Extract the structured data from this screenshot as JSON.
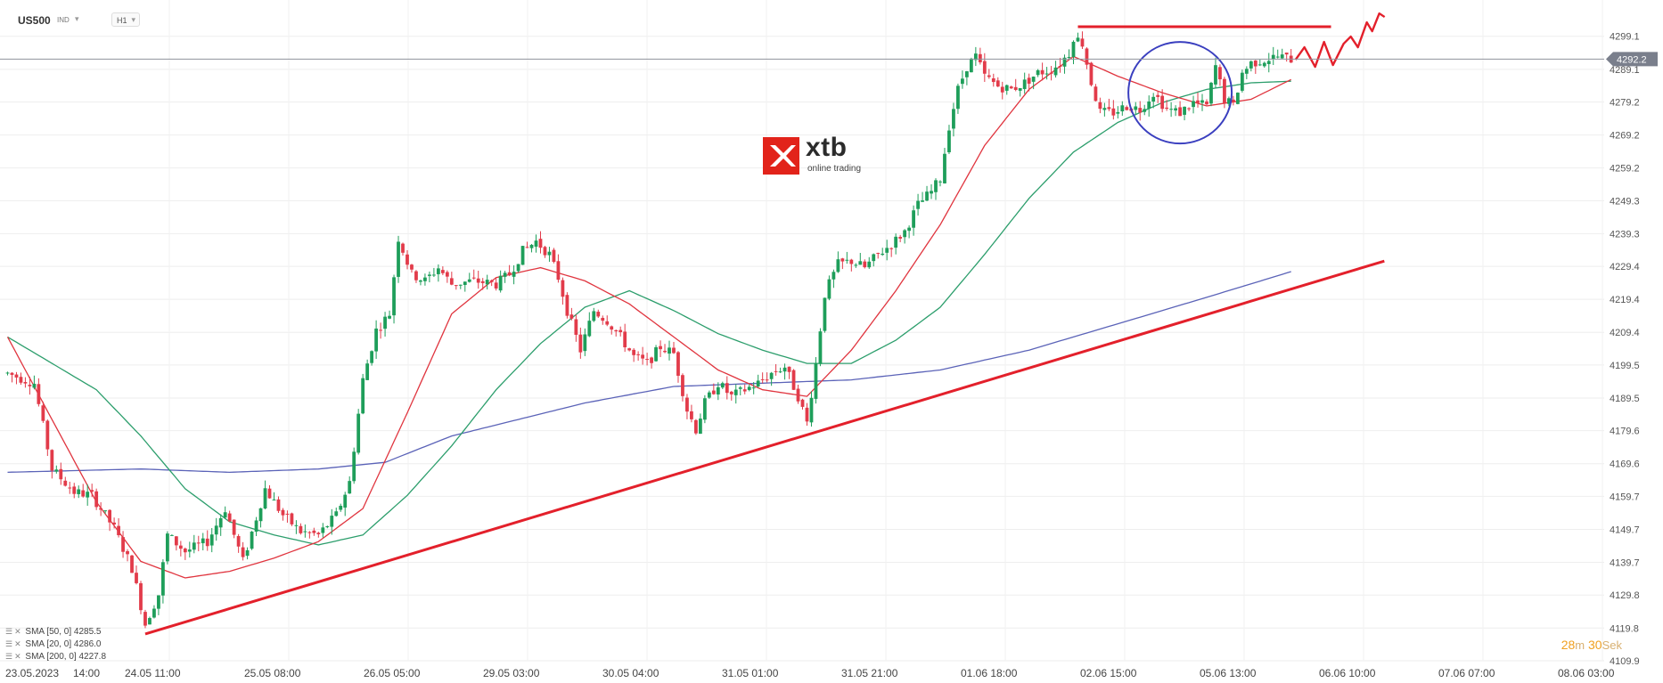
{
  "header": {
    "symbol": "US500",
    "badge": "IND",
    "timeframe": "H1"
  },
  "logo": {
    "word": "xtb",
    "sub": "online trading"
  },
  "legend": [
    {
      "label": "SMA [50, 0] 4285.5"
    },
    {
      "label": "SMA [20, 0] 4286.0"
    },
    {
      "label": "SMA [200, 0] 4227.8"
    }
  ],
  "timer": {
    "minutes": "28",
    "m": "m",
    "seconds": "30",
    "s": "Sek"
  },
  "colors": {
    "up": "#1e9e5a",
    "down": "#e23b4a",
    "sma20": "#e0353f",
    "sma50": "#2c9e6c",
    "sma200": "#5b63b8",
    "trend": "#e3202b",
    "circle": "#3a3fbf",
    "price_tag": "#7a7f8c"
  },
  "chart_data": {
    "type": "candlestick",
    "symbol": "US500",
    "timeframe": "H1",
    "ylim": [
      4109.9,
      4302.0
    ],
    "y_ticks": [
      4299.1,
      4289.1,
      4279.2,
      4269.2,
      4259.2,
      4249.3,
      4239.3,
      4229.4,
      4219.4,
      4209.4,
      4199.5,
      4189.5,
      4179.6,
      4169.6,
      4159.7,
      4149.7,
      4139.7,
      4129.8,
      4119.8,
      4109.9
    ],
    "x_ticks": [
      "23.05.2023",
      "14:00",
      "24.05 11:00",
      "25.05 08:00",
      "26.05 05:00",
      "29.05 03:00",
      "30.05 04:00",
      "31.05 01:00",
      "31.05 21:00",
      "01.06 18:00",
      "02.06 15:00",
      "05.06 13:00",
      "06.06 10:00",
      "07.06 07:00",
      "08.06 03:00"
    ],
    "current_price": 4292.2,
    "price_waypoints": [
      [
        0,
        4197.0
      ],
      [
        6,
        4194.0
      ],
      [
        10,
        4168.0
      ],
      [
        15,
        4161.0
      ],
      [
        19,
        4160.0
      ],
      [
        24,
        4150.0
      ],
      [
        28,
        4138.0
      ],
      [
        31,
        4121.0
      ],
      [
        34,
        4130.0
      ],
      [
        36,
        4148.0
      ],
      [
        40,
        4143.0
      ],
      [
        45,
        4146.0
      ],
      [
        49,
        4156.0
      ],
      [
        53,
        4140.0
      ],
      [
        58,
        4162.0
      ],
      [
        62,
        4154.0
      ],
      [
        66,
        4149.0
      ],
      [
        70,
        4148.0
      ],
      [
        74,
        4154.0
      ],
      [
        77,
        4164.0
      ],
      [
        80,
        4195.0
      ],
      [
        83,
        4210.0
      ],
      [
        86,
        4215.0
      ],
      [
        88,
        4238.0
      ],
      [
        91,
        4227.0
      ],
      [
        94,
        4225.0
      ],
      [
        97,
        4229.0
      ],
      [
        100,
        4224.0
      ],
      [
        105,
        4225.0
      ],
      [
        110,
        4224.0
      ],
      [
        113,
        4227.0
      ],
      [
        116,
        4234.0
      ],
      [
        119,
        4237.0
      ],
      [
        122,
        4233.0
      ],
      [
        124,
        4226.0
      ],
      [
        126,
        4216.0
      ],
      [
        129,
        4204.0
      ],
      [
        132,
        4216.0
      ],
      [
        135,
        4213.0
      ],
      [
        138,
        4208.0
      ],
      [
        141,
        4202.0
      ],
      [
        144,
        4200.0
      ],
      [
        147,
        4205.0
      ],
      [
        150,
        4203.0
      ],
      [
        153,
        4186.0
      ],
      [
        155,
        4180.0
      ],
      [
        157,
        4188.0
      ],
      [
        160,
        4194.0
      ],
      [
        163,
        4190.0
      ],
      [
        166,
        4192.0
      ],
      [
        169,
        4194.0
      ],
      [
        172,
        4197.0
      ],
      [
        175,
        4199.0
      ],
      [
        178,
        4190.0
      ],
      [
        180,
        4182.0
      ],
      [
        182,
        4200.0
      ],
      [
        184,
        4221.0
      ],
      [
        187,
        4230.0
      ],
      [
        190,
        4231.0
      ],
      [
        193,
        4229.0
      ],
      [
        196,
        4233.0
      ],
      [
        199,
        4236.0
      ],
      [
        202,
        4240.0
      ],
      [
        205,
        4248.0
      ],
      [
        208,
        4252.0
      ],
      [
        210,
        4256.0
      ],
      [
        212,
        4272.0
      ],
      [
        214,
        4283.0
      ],
      [
        216,
        4290.0
      ],
      [
        218,
        4293.0
      ],
      [
        220,
        4287.0
      ],
      [
        223,
        4284.0
      ],
      [
        226,
        4283.0
      ],
      [
        229,
        4285.0
      ],
      [
        232,
        4288.0
      ],
      [
        235,
        4289.0
      ],
      [
        237,
        4291.0
      ],
      [
        239,
        4294.0
      ],
      [
        240,
        4299.0
      ],
      [
        242,
        4297.0
      ],
      [
        244,
        4285.0
      ],
      [
        246,
        4276.0
      ],
      [
        249,
        4276.0
      ],
      [
        252,
        4278.0
      ],
      [
        255,
        4277.0
      ],
      [
        258,
        4282.0
      ],
      [
        261,
        4277.0
      ],
      [
        264,
        4276.0
      ],
      [
        267,
        4279.0
      ],
      [
        270,
        4278.0
      ],
      [
        272,
        4290.0
      ],
      [
        274,
        4280.0
      ],
      [
        276,
        4278.0
      ],
      [
        278,
        4288.0
      ],
      [
        280,
        4291.0
      ],
      [
        283,
        4292.0
      ],
      [
        286,
        4293.0
      ],
      [
        289,
        4292.2
      ]
    ],
    "series": [
      {
        "name": "SMA [20, 0] 4286.0",
        "type": "line",
        "waypoints": [
          [
            0,
            4208.0
          ],
          [
            10,
            4183.0
          ],
          [
            20,
            4158.0
          ],
          [
            30,
            4140.0
          ],
          [
            40,
            4135.0
          ],
          [
            50,
            4137.0
          ],
          [
            60,
            4141.0
          ],
          [
            70,
            4146.0
          ],
          [
            80,
            4156.0
          ],
          [
            90,
            4185.0
          ],
          [
            100,
            4215.0
          ],
          [
            110,
            4226.0
          ],
          [
            120,
            4229.0
          ],
          [
            130,
            4225.0
          ],
          [
            140,
            4218.0
          ],
          [
            150,
            4208.0
          ],
          [
            160,
            4198.0
          ],
          [
            170,
            4192.0
          ],
          [
            180,
            4190.0
          ],
          [
            190,
            4204.0
          ],
          [
            200,
            4222.0
          ],
          [
            210,
            4242.0
          ],
          [
            220,
            4266.0
          ],
          [
            230,
            4283.0
          ],
          [
            240,
            4293.0
          ],
          [
            250,
            4287.0
          ],
          [
            260,
            4282.0
          ],
          [
            270,
            4278.0
          ],
          [
            280,
            4280.0
          ],
          [
            289,
            4286.0
          ]
        ]
      },
      {
        "name": "SMA [50, 0] 4285.5",
        "type": "line",
        "waypoints": [
          [
            0,
            4208.0
          ],
          [
            10,
            4200.0
          ],
          [
            20,
            4192.0
          ],
          [
            30,
            4178.0
          ],
          [
            40,
            4162.0
          ],
          [
            50,
            4152.0
          ],
          [
            60,
            4148.0
          ],
          [
            70,
            4145.0
          ],
          [
            80,
            4148.0
          ],
          [
            90,
            4160.0
          ],
          [
            100,
            4175.0
          ],
          [
            110,
            4192.0
          ],
          [
            120,
            4206.0
          ],
          [
            130,
            4217.0
          ],
          [
            140,
            4222.0
          ],
          [
            150,
            4216.0
          ],
          [
            160,
            4209.0
          ],
          [
            170,
            4204.0
          ],
          [
            180,
            4200.0
          ],
          [
            190,
            4200.0
          ],
          [
            200,
            4207.0
          ],
          [
            210,
            4217.0
          ],
          [
            220,
            4233.0
          ],
          [
            230,
            4250.0
          ],
          [
            240,
            4264.0
          ],
          [
            250,
            4273.0
          ],
          [
            260,
            4279.0
          ],
          [
            270,
            4283.0
          ],
          [
            280,
            4285.0
          ],
          [
            289,
            4285.5
          ]
        ]
      },
      {
        "name": "SMA [200, 0] 4227.8",
        "type": "line",
        "waypoints": [
          [
            0,
            4167.0
          ],
          [
            30,
            4168.0
          ],
          [
            50,
            4167.0
          ],
          [
            70,
            4168.0
          ],
          [
            85,
            4170.0
          ],
          [
            100,
            4178.0
          ],
          [
            130,
            4188.0
          ],
          [
            150,
            4193.0
          ],
          [
            170,
            4194.0
          ],
          [
            190,
            4195.0
          ],
          [
            210,
            4198.0
          ],
          [
            230,
            4204.0
          ],
          [
            250,
            4212.0
          ],
          [
            270,
            4220.0
          ],
          [
            289,
            4227.8
          ]
        ]
      }
    ],
    "annotations": [
      {
        "type": "trendline",
        "x1": 31,
        "y1": 4118.0,
        "x2": 310,
        "y2": 4231.0
      },
      {
        "type": "resistance",
        "x1": 241,
        "x2": 298,
        "y": 4302.0
      },
      {
        "type": "circle",
        "cx": 264,
        "cy": 4282.0
      }
    ]
  }
}
